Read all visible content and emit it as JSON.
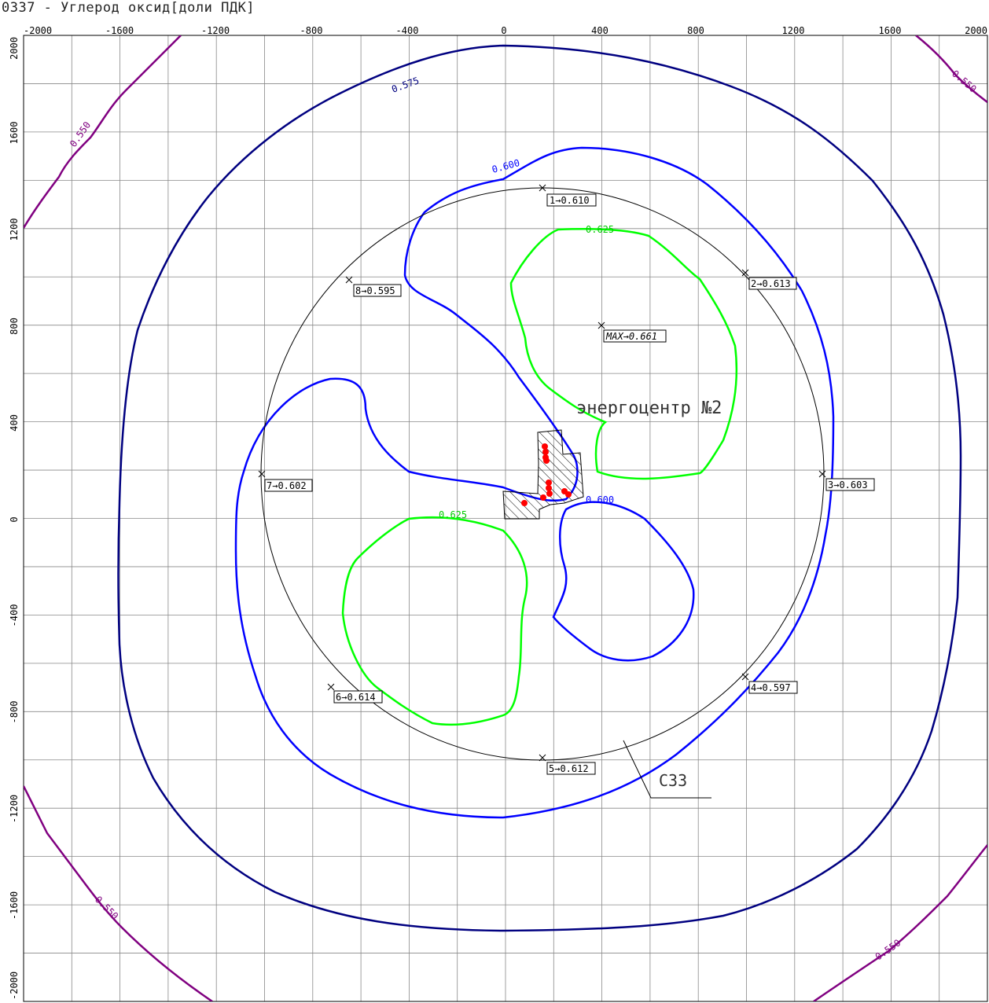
{
  "title": "0337 - Углерод оксид[доли ПДК]",
  "axes": {
    "x_ticks": [
      "-2000",
      "-1600",
      "-1200",
      "-800",
      "-400",
      "0",
      "400",
      "800",
      "1200",
      "1600",
      "2000"
    ],
    "y_ticks": [
      "2000",
      "1600",
      "1200",
      "800",
      "400",
      "0",
      "-400",
      "-800",
      "-1200",
      "-1600",
      "-2000"
    ]
  },
  "isolines": [
    {
      "value": "0.550",
      "color": "#800080"
    },
    {
      "value": "0.575",
      "color": "#000080"
    },
    {
      "value": "0.600",
      "color": "#0000ff"
    },
    {
      "value": "0.625",
      "color": "#00ff00"
    }
  ],
  "iso_labels": {
    "l550_nw": "0.550",
    "l550_ne": "0.550",
    "l550_sw": "0.550",
    "l550_se": "0.550",
    "l575": "0.575",
    "l600_n": "0.600",
    "l600_c": "0.600",
    "l625_n": "0.625",
    "l625_s": "0.625"
  },
  "points": [
    {
      "id": "p1",
      "label": "1→0.610"
    },
    {
      "id": "p2",
      "label": "2→0.613"
    },
    {
      "id": "p3",
      "label": "3→0.603"
    },
    {
      "id": "p4",
      "label": "4→0.597"
    },
    {
      "id": "p5",
      "label": "5→0.612"
    },
    {
      "id": "p6",
      "label": "6→0.614"
    },
    {
      "id": "p7",
      "label": "7→0.602"
    },
    {
      "id": "p8",
      "label": "8→0.595"
    },
    {
      "id": "max",
      "label": "MAX→0.661"
    }
  ],
  "site_name": "энергоцентр №2",
  "szz_label": "СЗЗ",
  "colors": {
    "grid": "#888888",
    "szz": "#000000",
    "source": "#ff0000"
  }
}
